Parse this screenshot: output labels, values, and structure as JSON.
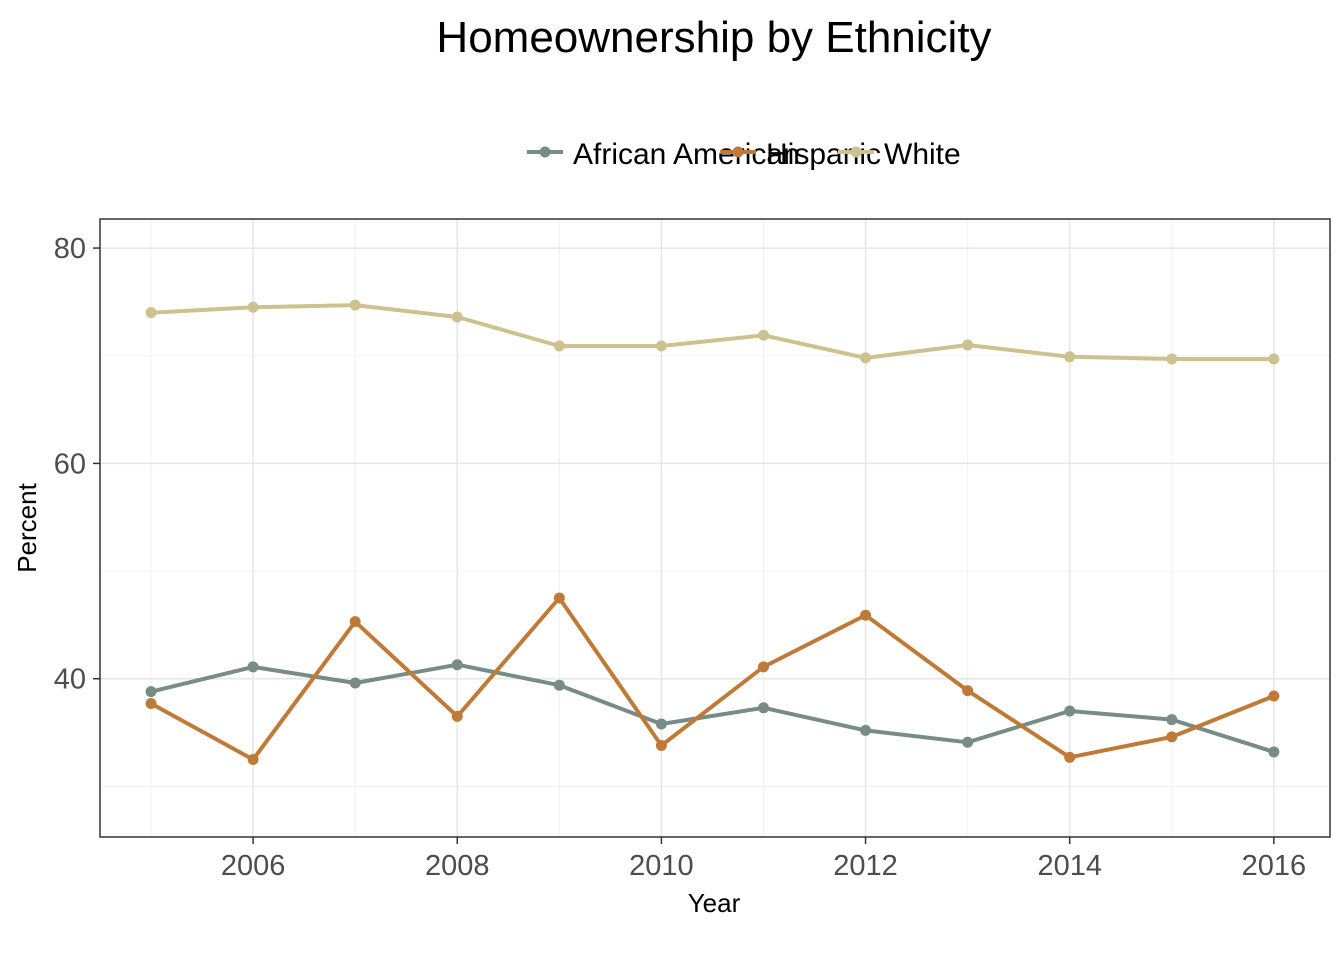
{
  "chart_data": {
    "type": "line",
    "title": "Homeownership by Ethnicity",
    "xlabel": "Year",
    "ylabel": "Percent",
    "x": [
      2005,
      2006,
      2007,
      2008,
      2009,
      2010,
      2011,
      2012,
      2013,
      2014,
      2015,
      2016
    ],
    "xlim": [
      2004.5,
      2016.55
    ],
    "ylim": [
      25.3,
      82.7
    ],
    "x_ticks": [
      2006,
      2008,
      2010,
      2012,
      2014,
      2016
    ],
    "x_tick_labels": [
      "2006",
      "2008",
      "2010",
      "2012",
      "2014",
      "2016"
    ],
    "y_ticks": [
      40,
      60,
      80
    ],
    "y_tick_labels": [
      "40",
      "60",
      "80"
    ],
    "grid": true,
    "legend_position": "top",
    "series": [
      {
        "name": "African American",
        "color": "#778c86",
        "values": [
          38.8,
          41.1,
          39.6,
          41.3,
          39.4,
          35.8,
          37.3,
          35.2,
          34.1,
          37.0,
          36.2,
          33.2
        ]
      },
      {
        "name": "Hispanic",
        "color": "#c07a38",
        "values": [
          37.7,
          32.5,
          45.3,
          36.5,
          47.5,
          33.8,
          41.1,
          45.9,
          38.9,
          32.7,
          34.6,
          38.4
        ]
      },
      {
        "name": "White",
        "color": "#cdc28f",
        "values": [
          74.0,
          74.5,
          74.7,
          73.6,
          70.9,
          70.9,
          71.9,
          69.8,
          71.0,
          69.9,
          69.7,
          69.7
        ]
      }
    ]
  }
}
